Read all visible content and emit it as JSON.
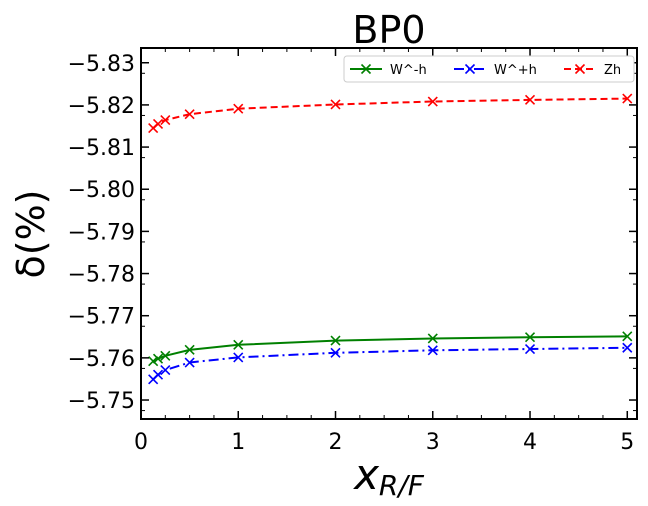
{
  "chart_data": {
    "type": "line",
    "title": "BP0",
    "xlabel": "x",
    "xlabel_sub": "R/F",
    "ylabel": "δ(%)",
    "xlim": [
      0,
      5.1
    ],
    "ylim": [
      -5.7455,
      -5.8335
    ],
    "x_ticks": [
      0,
      1,
      2,
      3,
      4,
      5
    ],
    "x_tick_labels": [
      "0",
      "1",
      "2",
      "3",
      "4",
      "5"
    ],
    "y_ticks": [
      -5.75,
      -5.76,
      -5.77,
      -5.78,
      -5.79,
      -5.8,
      -5.81,
      -5.82,
      -5.83
    ],
    "y_tick_labels": [
      "−5.75",
      "−5.76",
      "−5.77",
      "−5.78",
      "−5.79",
      "−5.80",
      "−5.81",
      "−5.82",
      "−5.83"
    ],
    "legend_position": "top-right",
    "grid": false,
    "x": [
      0.125,
      0.175,
      0.25,
      0.5,
      1,
      2,
      3,
      4,
      5
    ],
    "series": [
      {
        "name": "W^-h",
        "color": "#008000",
        "dash": "solid",
        "values": [
          -5.7592,
          -5.7598,
          -5.7605,
          -5.7619,
          -5.7631,
          -5.7641,
          -5.7646,
          -5.7649,
          -5.7651
        ]
      },
      {
        "name": "W^+h",
        "color": "#0000ff",
        "dash": "dashdot",
        "values": [
          -5.7549,
          -5.756,
          -5.7571,
          -5.7589,
          -5.7601,
          -5.7612,
          -5.7618,
          -5.7621,
          -5.7624
        ]
      },
      {
        "name": "Zh",
        "color": "#ff0000",
        "dash": "dashed",
        "values": [
          -5.8145,
          -5.8155,
          -5.8164,
          -5.8178,
          -5.8191,
          -5.8201,
          -5.8208,
          -5.8212,
          -5.8215
        ]
      }
    ]
  }
}
